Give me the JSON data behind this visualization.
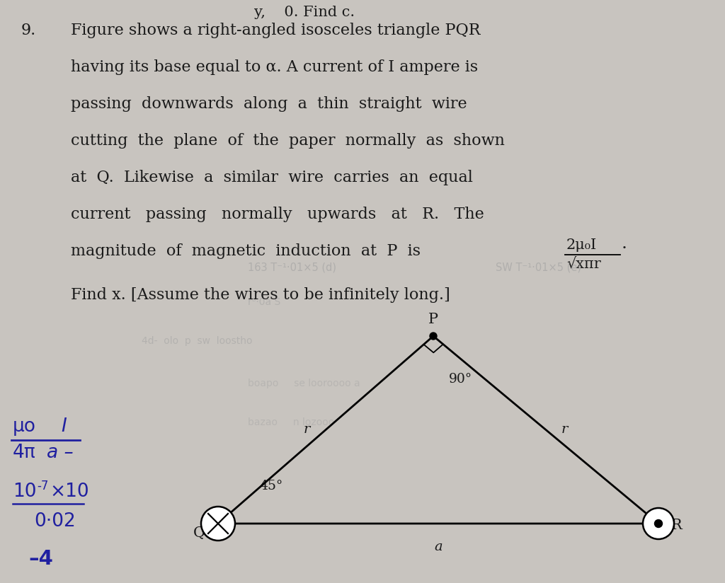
{
  "background_color": "#c8c4bf",
  "text_color": "#1a1a1a",
  "question_number": "9.",
  "line1": "Figure shows a right-angled isosceles triangle PQR",
  "line2": "having its base equal to α. A current of I ampere is",
  "line3": "passing  downwards  along  a  thin  straight  wire",
  "line4": "cutting  the  plane  of  the  paper  normally  as  shown",
  "line5": "at  Q.  Likewise  a  similar  wire  carries  an  equal",
  "line6": "current   passing   normally   upwards   at   R.   The",
  "line7": "magnitude  of  magnetic  induction  at  P  is",
  "formula_num": "2μ₀I",
  "formula_den": "√xπr",
  "find_text": "Find x. [Assume the wires to be infinitely long.]",
  "hw_color": "#2020a0",
  "triangle_P": [
    0.6,
    0.355
  ],
  "triangle_Q": [
    0.3,
    0.065
  ],
  "triangle_R": [
    0.92,
    0.065
  ],
  "label_90": "90°",
  "label_45": "45°",
  "label_r": "r",
  "label_a": "a",
  "label_P": "P",
  "label_Q": "Q",
  "label_R": "R"
}
